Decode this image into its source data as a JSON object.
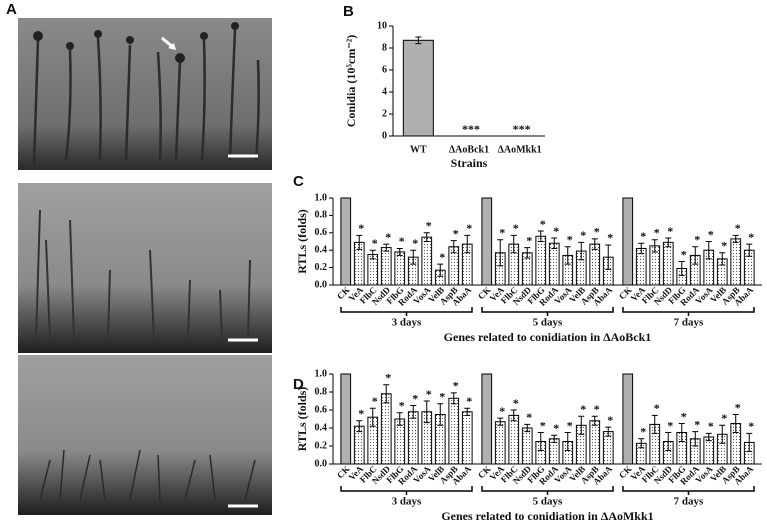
{
  "panel_labels": [
    "A",
    "B",
    "C",
    "D"
  ],
  "chart_data": [
    {
      "type": "bar",
      "categories": [
        "WT",
        "ΔAoBck1",
        "ΔAoMkk1"
      ],
      "values": [
        8.7,
        0,
        0
      ],
      "errors": [
        0.3,
        0,
        0
      ],
      "marks": [
        null,
        "***",
        "***"
      ],
      "ylabel": "Conidia (10⁵cm⁻²)",
      "xlabel": "Strains",
      "ylim": [
        0,
        10
      ],
      "yticks": [
        0,
        2,
        4,
        6,
        8,
        10
      ],
      "color": "#b0b0b0"
    },
    {
      "type": "grouped-bar",
      "ylabel": "RTLs (folds)",
      "xlabel": "Genes related to conidiation in ΔAoBck1",
      "ylim": [
        0,
        1
      ],
      "yticks": [
        {
          "value": 0,
          "label": "0.0"
        },
        0.2,
        0.4,
        0.6,
        0.8,
        {
          "value": 1,
          "label": "1.0"
        }
      ],
      "control_color": "#b0b0b0",
      "groups": [
        {
          "name": "3 days",
          "categories": [
            "CK",
            "VeA",
            "FlbC",
            "NsdD",
            "FlbG",
            "RodA",
            "VosA",
            "VelB",
            "AspB",
            "AbaA"
          ],
          "values": [
            1,
            0.49,
            0.35,
            0.43,
            0.38,
            0.32,
            0.55,
            0.17,
            0.44,
            0.47
          ],
          "errors": [
            0,
            0.08,
            0.05,
            0.04,
            0.04,
            0.08,
            0.05,
            0.07,
            0.07,
            0.1
          ],
          "marks": [
            null,
            "*",
            "*",
            "*",
            "*",
            "*",
            "*",
            "*",
            "*",
            "*"
          ]
        },
        {
          "name": "5 days",
          "categories": [
            "CK",
            "VeA",
            "FlbC",
            "NsdD",
            "FlbG",
            "RodA",
            "VosA",
            "VelB",
            "AspB",
            "AbaA"
          ],
          "values": [
            1,
            0.37,
            0.47,
            0.37,
            0.56,
            0.48,
            0.34,
            0.39,
            0.47,
            0.32
          ],
          "errors": [
            0,
            0.15,
            0.1,
            0.06,
            0.06,
            0.06,
            0.1,
            0.1,
            0.06,
            0.14
          ],
          "marks": [
            null,
            "*",
            "*",
            "*",
            "*",
            "*",
            "*",
            "*",
            "*",
            "*"
          ]
        },
        {
          "name": "7 days",
          "categories": [
            "CK",
            "VeA",
            "FlbC",
            "NsdD",
            "FlbG",
            "RodA",
            "VosA",
            "VelB",
            "AspB",
            "AbaA"
          ],
          "values": [
            1,
            0.42,
            0.45,
            0.49,
            0.19,
            0.34,
            0.4,
            0.3,
            0.53,
            0.4
          ],
          "errors": [
            0,
            0.06,
            0.07,
            0.05,
            0.08,
            0.1,
            0.1,
            0.07,
            0.04,
            0.07
          ],
          "marks": [
            null,
            "*",
            "*",
            "*",
            "*",
            "*",
            "*",
            "*",
            "*",
            "*"
          ]
        }
      ]
    },
    {
      "type": "grouped-bar",
      "ylabel": "RTLs (folds)",
      "xlabel": "Genes related to conidiation in ΔAoMkk1",
      "ylim": [
        0,
        1
      ],
      "yticks": [
        {
          "value": 0,
          "label": "0.0"
        },
        0.2,
        0.4,
        0.6,
        0.8,
        {
          "value": 1,
          "label": "1.0"
        }
      ],
      "control_color": "#b0b0b0",
      "groups": [
        {
          "name": "3 days",
          "categories": [
            "CK",
            "VeA",
            "FlbC",
            "NsdD",
            "FlbG",
            "RodA",
            "VosA",
            "VelB",
            "AspB",
            "AbaA"
          ],
          "values": [
            1,
            0.42,
            0.52,
            0.78,
            0.5,
            0.58,
            0.58,
            0.55,
            0.73,
            0.58
          ],
          "errors": [
            0,
            0.06,
            0.1,
            0.1,
            0.07,
            0.07,
            0.12,
            0.12,
            0.06,
            0.04
          ],
          "marks": [
            null,
            "*",
            "*",
            "*",
            "*",
            "*",
            "*",
            "*",
            "*",
            "*"
          ]
        },
        {
          "name": "5 days",
          "categories": [
            "CK",
            "VeA",
            "FlbC",
            "NsdD",
            "FlbG",
            "RodA",
            "VosA",
            "VelB",
            "AspB",
            "AbaA"
          ],
          "values": [
            1,
            0.47,
            0.54,
            0.4,
            0.25,
            0.28,
            0.25,
            0.43,
            0.48,
            0.36
          ],
          "errors": [
            0,
            0.04,
            0.06,
            0.04,
            0.1,
            0.04,
            0.1,
            0.1,
            0.05,
            0.05
          ],
          "marks": [
            null,
            "*",
            "*",
            "*",
            "*",
            "*",
            "*",
            "*",
            "*",
            "*"
          ]
        },
        {
          "name": "7 days",
          "categories": [
            "CK",
            "VeA",
            "FlbC",
            "NsdD",
            "FlbG",
            "RodA",
            "VosA",
            "VelB",
            "AspB",
            "AbaA"
          ],
          "values": [
            1,
            0.23,
            0.44,
            0.25,
            0.35,
            0.28,
            0.3,
            0.33,
            0.45,
            0.24
          ],
          "errors": [
            0,
            0.05,
            0.1,
            0.1,
            0.1,
            0.08,
            0.04,
            0.1,
            0.1,
            0.1
          ],
          "marks": [
            null,
            "*",
            "*",
            "*",
            "*",
            "*",
            "*",
            "*",
            "*",
            "*"
          ]
        }
      ]
    }
  ]
}
